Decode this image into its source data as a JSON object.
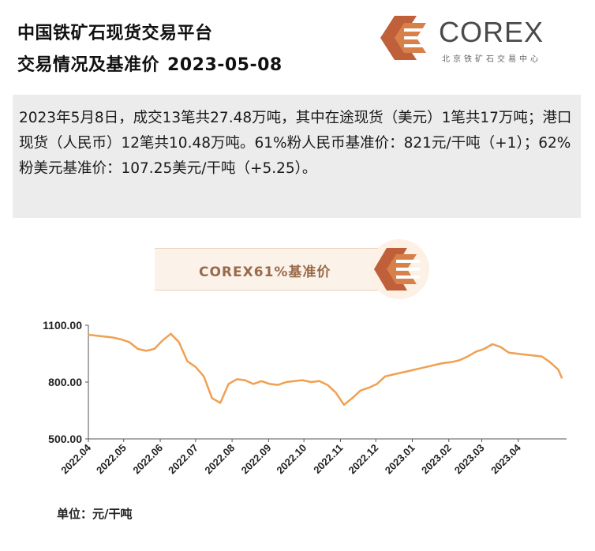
{
  "header": {
    "title_line1": "中国铁矿石现货交易平台",
    "title_line2": "交易情况及基准价",
    "date": "2023-05-08"
  },
  "logo": {
    "name": "COREX",
    "subtitle": "北京铁矿石交易中心",
    "color": "#c0603a"
  },
  "summary": {
    "text": "2023年5月8日，成交13笔共27.48万吨，其中在途现货（美元）1笔共17万吨；港口现货（人民币）12笔共10.48万吨。61%粉人民币基准价：821元/干吨（+1）；62%粉美元基准价：107.25美元/干吨（+5.25）。"
  },
  "banner": {
    "label": "COREX61%基准价"
  },
  "unit_label": "单位：元/干吨",
  "colors": {
    "line": "#f0a050",
    "summary_bg": "#ececec",
    "banner_text": "#9a6a4a"
  },
  "chart_data": {
    "type": "line",
    "xlabel": "",
    "ylabel": "",
    "ylim": [
      500,
      1100
    ],
    "yticks": [
      "1100.00",
      "800.00",
      "500.00"
    ],
    "xticks": [
      "2022.04",
      "2022.05",
      "2022.06",
      "2022.07",
      "2022.08",
      "2022.09",
      "2022.10",
      "2022.11",
      "2022.12",
      "2023.01",
      "2023.02",
      "2023.03",
      "2023.04"
    ],
    "grid": false,
    "series": [
      {
        "values": [
          {
            "x": "2022-04-01",
            "y": 1050
          },
          {
            "x": "2022-04-08",
            "y": 1045
          },
          {
            "x": "2022-04-15",
            "y": 1040
          },
          {
            "x": "2022-04-22",
            "y": 1035
          },
          {
            "x": "2022-04-29",
            "y": 1025
          },
          {
            "x": "2022-05-06",
            "y": 1010
          },
          {
            "x": "2022-05-13",
            "y": 975
          },
          {
            "x": "2022-05-20",
            "y": 965
          },
          {
            "x": "2022-05-27",
            "y": 975
          },
          {
            "x": "2022-06-03",
            "y": 1020
          },
          {
            "x": "2022-06-10",
            "y": 1055
          },
          {
            "x": "2022-06-17",
            "y": 1010
          },
          {
            "x": "2022-06-24",
            "y": 910
          },
          {
            "x": "2022-07-01",
            "y": 880
          },
          {
            "x": "2022-07-08",
            "y": 830
          },
          {
            "x": "2022-07-15",
            "y": 715
          },
          {
            "x": "2022-07-22",
            "y": 690
          },
          {
            "x": "2022-07-29",
            "y": 790
          },
          {
            "x": "2022-08-05",
            "y": 815
          },
          {
            "x": "2022-08-12",
            "y": 810
          },
          {
            "x": "2022-08-19",
            "y": 790
          },
          {
            "x": "2022-08-26",
            "y": 805
          },
          {
            "x": "2022-09-02",
            "y": 790
          },
          {
            "x": "2022-09-09",
            "y": 785
          },
          {
            "x": "2022-09-16",
            "y": 800
          },
          {
            "x": "2022-09-23",
            "y": 805
          },
          {
            "x": "2022-09-30",
            "y": 810
          },
          {
            "x": "2022-10-07",
            "y": 800
          },
          {
            "x": "2022-10-14",
            "y": 805
          },
          {
            "x": "2022-10-21",
            "y": 785
          },
          {
            "x": "2022-10-28",
            "y": 745
          },
          {
            "x": "2022-11-04",
            "y": 680
          },
          {
            "x": "2022-11-11",
            "y": 715
          },
          {
            "x": "2022-11-18",
            "y": 755
          },
          {
            "x": "2022-11-25",
            "y": 770
          },
          {
            "x": "2022-12-02",
            "y": 790
          },
          {
            "x": "2022-12-09",
            "y": 830
          },
          {
            "x": "2022-12-16",
            "y": 840
          },
          {
            "x": "2022-12-23",
            "y": 850
          },
          {
            "x": "2022-12-30",
            "y": 860
          },
          {
            "x": "2023-01-06",
            "y": 870
          },
          {
            "x": "2023-01-13",
            "y": 880
          },
          {
            "x": "2023-01-20",
            "y": 890
          },
          {
            "x": "2023-01-27",
            "y": 900
          },
          {
            "x": "2023-02-03",
            "y": 905
          },
          {
            "x": "2023-02-10",
            "y": 915
          },
          {
            "x": "2023-02-17",
            "y": 935
          },
          {
            "x": "2023-02-24",
            "y": 960
          },
          {
            "x": "2023-03-03",
            "y": 975
          },
          {
            "x": "2023-03-10",
            "y": 1000
          },
          {
            "x": "2023-03-17",
            "y": 985
          },
          {
            "x": "2023-03-24",
            "y": 955
          },
          {
            "x": "2023-03-31",
            "y": 950
          },
          {
            "x": "2023-04-07",
            "y": 945
          },
          {
            "x": "2023-04-14",
            "y": 940
          },
          {
            "x": "2023-04-21",
            "y": 935
          },
          {
            "x": "2023-04-28",
            "y": 905
          },
          {
            "x": "2023-05-05",
            "y": 865
          },
          {
            "x": "2023-05-08",
            "y": 821
          }
        ]
      }
    ]
  }
}
